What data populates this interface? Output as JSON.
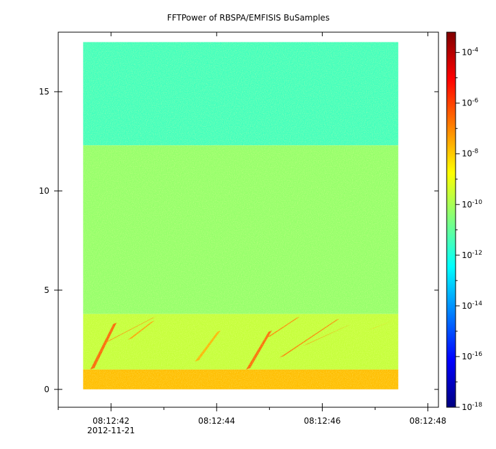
{
  "chart_data": {
    "type": "heatmap",
    "title": "FFTPower of RBSPA/EMFISIS  BuSamples",
    "xlabel": "",
    "ylabel": "",
    "x_axis": {
      "type": "time",
      "range": [
        "08:12:41.0",
        "08:12:48.2"
      ],
      "ticks": [
        {
          "label": "08:12:42",
          "sublabel": "2012-11-21",
          "seconds": 42
        },
        {
          "label": "08:12:44",
          "sublabel": "",
          "seconds": 44
        },
        {
          "label": "08:12:46",
          "sublabel": "",
          "seconds": 46
        },
        {
          "label": "08:12:48",
          "sublabel": "",
          "seconds": 48
        }
      ],
      "minor_ticks_seconds": [
        41,
        43,
        45,
        47
      ]
    },
    "y_axis": {
      "range": [
        -0.9,
        18.0
      ],
      "ticks": [
        0,
        5,
        10,
        15
      ],
      "tick_labels": [
        "0",
        "5",
        "10",
        "15"
      ]
    },
    "data_extent": {
      "x_seconds": [
        41.47,
        47.44
      ],
      "y": [
        0.0,
        17.5
      ]
    },
    "colorbar": {
      "scale": "log",
      "range_exponents": [
        -18,
        -3.2
      ],
      "tick_exponents": [
        -18,
        -16,
        -14,
        -12,
        -10,
        -8,
        -6,
        -4
      ],
      "tick_base": "10",
      "colormap": [
        "#00007f",
        "#0000ff",
        "#007fff",
        "#00ffff",
        "#7fff7f",
        "#ffff00",
        "#ff7f00",
        "#ff0000",
        "#7f0000"
      ]
    },
    "bands": [
      {
        "y": [
          12.3,
          17.5
        ],
        "log_power": -11.5
      },
      {
        "y": [
          3.8,
          12.3
        ],
        "log_power": -10.3
      },
      {
        "y": [
          1.0,
          3.8
        ],
        "log_power": -9.6
      },
      {
        "y": [
          0.0,
          1.0
        ],
        "log_power": -7.8
      }
    ],
    "chorus_elements": [
      {
        "x0_seconds": 41.62,
        "y0": 1.0,
        "x1_seconds": 42.08,
        "y1": 3.4,
        "log_power": -6.3
      },
      {
        "x0_seconds": 41.85,
        "y0": 2.3,
        "x1_seconds": 42.82,
        "y1": 3.7,
        "log_power": -7.0
      },
      {
        "x0_seconds": 42.33,
        "y0": 2.5,
        "x1_seconds": 42.8,
        "y1": 3.5,
        "log_power": -7.3
      },
      {
        "x0_seconds": 43.6,
        "y0": 1.4,
        "x1_seconds": 44.05,
        "y1": 3.0,
        "log_power": -7.6
      },
      {
        "x0_seconds": 44.57,
        "y0": 1.0,
        "x1_seconds": 45.02,
        "y1": 3.0,
        "log_power": -6.4
      },
      {
        "x0_seconds": 44.95,
        "y0": 2.6,
        "x1_seconds": 45.55,
        "y1": 3.7,
        "log_power": -6.9
      },
      {
        "x0_seconds": 45.2,
        "y0": 1.6,
        "x1_seconds": 46.3,
        "y1": 3.6,
        "log_power": -6.8
      },
      {
        "x0_seconds": 45.65,
        "y0": 2.2,
        "x1_seconds": 46.5,
        "y1": 3.3,
        "log_power": -7.1
      },
      {
        "x0_seconds": 46.9,
        "y0": 3.0,
        "x1_seconds": 47.4,
        "y1": 3.6,
        "log_power": -7.6
      }
    ]
  }
}
